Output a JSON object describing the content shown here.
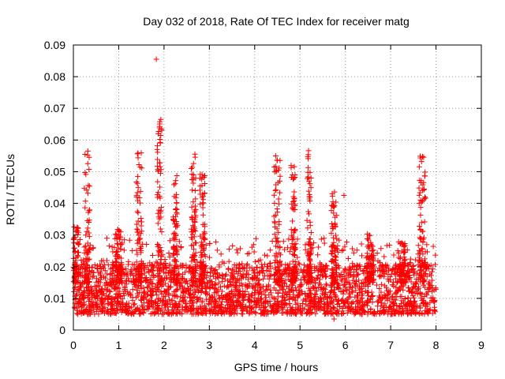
{
  "chart_data": {
    "type": "scatter",
    "title": "Day 032 of 2018, Rate Of TEC Index for receiver matg",
    "xlabel": "GPS time / hours",
    "ylabel": "ROTI / TECUs",
    "xlim": [
      0,
      9
    ],
    "ylim": [
      0,
      0.09
    ],
    "grid": true,
    "marker": "+",
    "marker_color": "#ff0000",
    "x_ticks": [
      0,
      1,
      2,
      3,
      4,
      5,
      6,
      7,
      8,
      9
    ],
    "x_tick_labels": [
      "0",
      "1",
      "2",
      "3",
      "4",
      "5",
      "6",
      "7",
      "8",
      "9"
    ],
    "y_ticks": [
      0,
      0.01,
      0.02,
      0.03,
      0.04,
      0.05,
      0.06,
      0.07,
      0.08,
      0.09
    ],
    "y_tick_labels": [
      "0",
      "0.01",
      "0.02",
      "0.03",
      "0.04",
      "0.05",
      "0.06",
      "0.07",
      "0.08",
      "0.09"
    ],
    "data_x_range": [
      0,
      8
    ],
    "baseline_range": [
      0.005,
      0.02
    ],
    "bursts": [
      {
        "x": 0.05,
        "width": 0.15,
        "peak": 0.033
      },
      {
        "x": 0.3,
        "width": 0.12,
        "peak": 0.056
      },
      {
        "x": 1.0,
        "width": 0.15,
        "peak": 0.032
      },
      {
        "x": 1.45,
        "width": 0.12,
        "peak": 0.058
      },
      {
        "x": 1.9,
        "width": 0.1,
        "peak": 0.066
      },
      {
        "x": 2.25,
        "width": 0.1,
        "peak": 0.049
      },
      {
        "x": 2.65,
        "width": 0.1,
        "peak": 0.057
      },
      {
        "x": 2.85,
        "width": 0.12,
        "peak": 0.05
      },
      {
        "x": 4.5,
        "width": 0.15,
        "peak": 0.055
      },
      {
        "x": 4.85,
        "width": 0.12,
        "peak": 0.052
      },
      {
        "x": 5.2,
        "width": 0.1,
        "peak": 0.057
      },
      {
        "x": 5.75,
        "width": 0.12,
        "peak": 0.044
      },
      {
        "x": 6.55,
        "width": 0.15,
        "peak": 0.031
      },
      {
        "x": 7.25,
        "width": 0.15,
        "peak": 0.028
      },
      {
        "x": 7.7,
        "width": 0.15,
        "peak": 0.055
      }
    ],
    "outliers": [
      {
        "x": 1.83,
        "y": 0.0855
      },
      {
        "x": 1.93,
        "y": 0.0665
      },
      {
        "x": 1.95,
        "y": 0.063
      },
      {
        "x": 1.85,
        "y": 0.057
      },
      {
        "x": 0.32,
        "y": 0.0565
      },
      {
        "x": 5.75,
        "y": 0.0035
      },
      {
        "x": 5.97,
        "y": 0.0425
      }
    ]
  }
}
